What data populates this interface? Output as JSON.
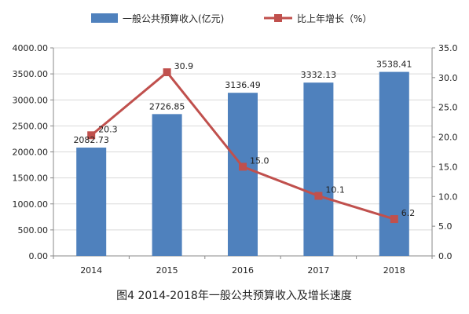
{
  "chart_data": {
    "type": "bar",
    "categories": [
      "2014",
      "2015",
      "2016",
      "2017",
      "2018"
    ],
    "series": [
      {
        "name": "一般公共预算收入(亿元)",
        "type": "bar",
        "axis": "left",
        "color": "#4f81bd",
        "values": [
          2082.73,
          2726.85,
          3136.49,
          3332.13,
          3538.41
        ],
        "labels": [
          "2082.73",
          "2726.85",
          "3136.49",
          "3332.13",
          "3538.41"
        ]
      },
      {
        "name": "比上年增长（%）",
        "type": "line",
        "axis": "right",
        "color": "#c0504d",
        "values": [
          20.3,
          30.9,
          15.0,
          10.1,
          6.2
        ],
        "labels": [
          "20.3",
          "30.9",
          "15.0",
          "10.1",
          "6.2"
        ]
      }
    ],
    "y_left": {
      "lim": [
        0,
        4000
      ],
      "ticks": [
        "0.00",
        "500.00",
        "1000.00",
        "1500.00",
        "2000.00",
        "2500.00",
        "3000.00",
        "3500.00",
        "4000.00"
      ]
    },
    "y_right": {
      "lim": [
        0,
        35
      ],
      "ticks": [
        "0.0",
        "5.0",
        "10.0",
        "15.0",
        "20.0",
        "25.0",
        "30.0",
        "35.0"
      ]
    },
    "grid": true,
    "legend_position": "top",
    "caption": "图4 2014-2018年一般公共预算收入及增长速度"
  }
}
